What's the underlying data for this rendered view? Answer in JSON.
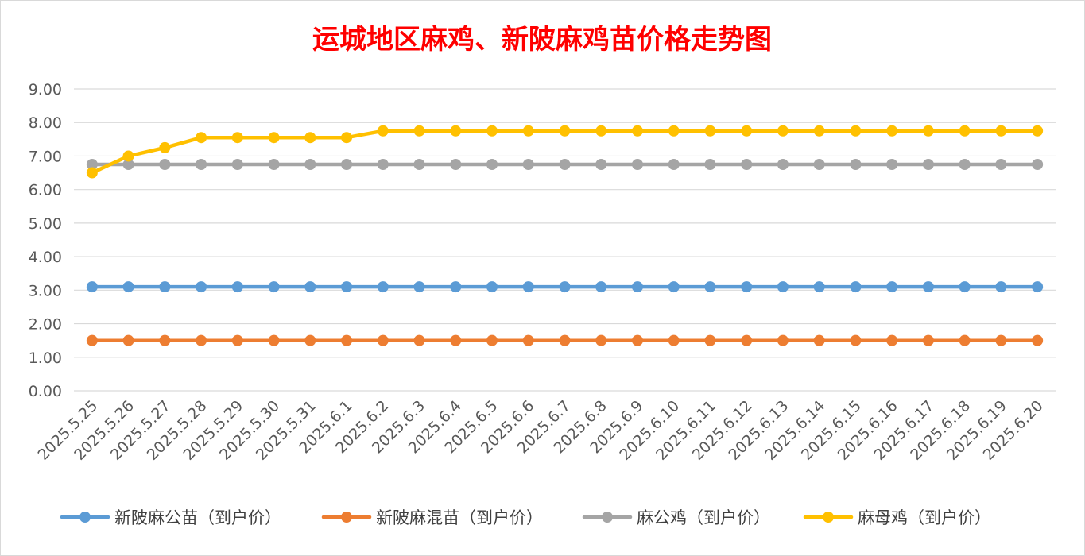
{
  "chart_data": {
    "type": "line",
    "title": "运城地区麻鸡、新陂麻鸡苗价格走势图",
    "xlabel": "",
    "ylabel": "",
    "ylim": [
      0,
      9
    ],
    "y_ticks": [
      "0.00",
      "1.00",
      "2.00",
      "3.00",
      "4.00",
      "5.00",
      "6.00",
      "7.00",
      "8.00",
      "9.00"
    ],
    "grid": true,
    "legend_position": "bottom",
    "categories": [
      "2025.5.25",
      "2025.5.26",
      "2025.5.27",
      "2025.5.28",
      "2025.5.29",
      "2025.5.30",
      "2025.5.31",
      "2025.6.1",
      "2025.6.2",
      "2025.6.3",
      "2025.6.4",
      "2025.6.5",
      "2025.6.6",
      "2025.6.7",
      "2025.6.8",
      "2025.6.9",
      "2025.6.10",
      "2025.6.11",
      "2025.6.12",
      "2025.6.13",
      "2025.6.14",
      "2025.6.15",
      "2025.6.16",
      "2025.6.17",
      "2025.6.18",
      "2025.6.19",
      "2025.6.20"
    ],
    "series": [
      {
        "name": "新陂麻公苗（到户价）",
        "color": "#5b9bd5",
        "values": [
          3.1,
          3.1,
          3.1,
          3.1,
          3.1,
          3.1,
          3.1,
          3.1,
          3.1,
          3.1,
          3.1,
          3.1,
          3.1,
          3.1,
          3.1,
          3.1,
          3.1,
          3.1,
          3.1,
          3.1,
          3.1,
          3.1,
          3.1,
          3.1,
          3.1,
          3.1,
          3.1
        ]
      },
      {
        "name": "新陂麻混苗（到户价）",
        "color": "#ed7d31",
        "values": [
          1.5,
          1.5,
          1.5,
          1.5,
          1.5,
          1.5,
          1.5,
          1.5,
          1.5,
          1.5,
          1.5,
          1.5,
          1.5,
          1.5,
          1.5,
          1.5,
          1.5,
          1.5,
          1.5,
          1.5,
          1.5,
          1.5,
          1.5,
          1.5,
          1.5,
          1.5,
          1.5
        ]
      },
      {
        "name": "麻公鸡（到户价）",
        "color": "#a5a5a5",
        "values": [
          6.75,
          6.75,
          6.75,
          6.75,
          6.75,
          6.75,
          6.75,
          6.75,
          6.75,
          6.75,
          6.75,
          6.75,
          6.75,
          6.75,
          6.75,
          6.75,
          6.75,
          6.75,
          6.75,
          6.75,
          6.75,
          6.75,
          6.75,
          6.75,
          6.75,
          6.75,
          6.75
        ]
      },
      {
        "name": "麻母鸡（到户价）",
        "color": "#ffc000",
        "values": [
          6.5,
          7.0,
          7.25,
          7.55,
          7.55,
          7.55,
          7.55,
          7.55,
          7.75,
          7.75,
          7.75,
          7.75,
          7.75,
          7.75,
          7.75,
          7.75,
          7.75,
          7.75,
          7.75,
          7.75,
          7.75,
          7.75,
          7.75,
          7.75,
          7.75,
          7.75,
          7.75
        ]
      }
    ]
  }
}
